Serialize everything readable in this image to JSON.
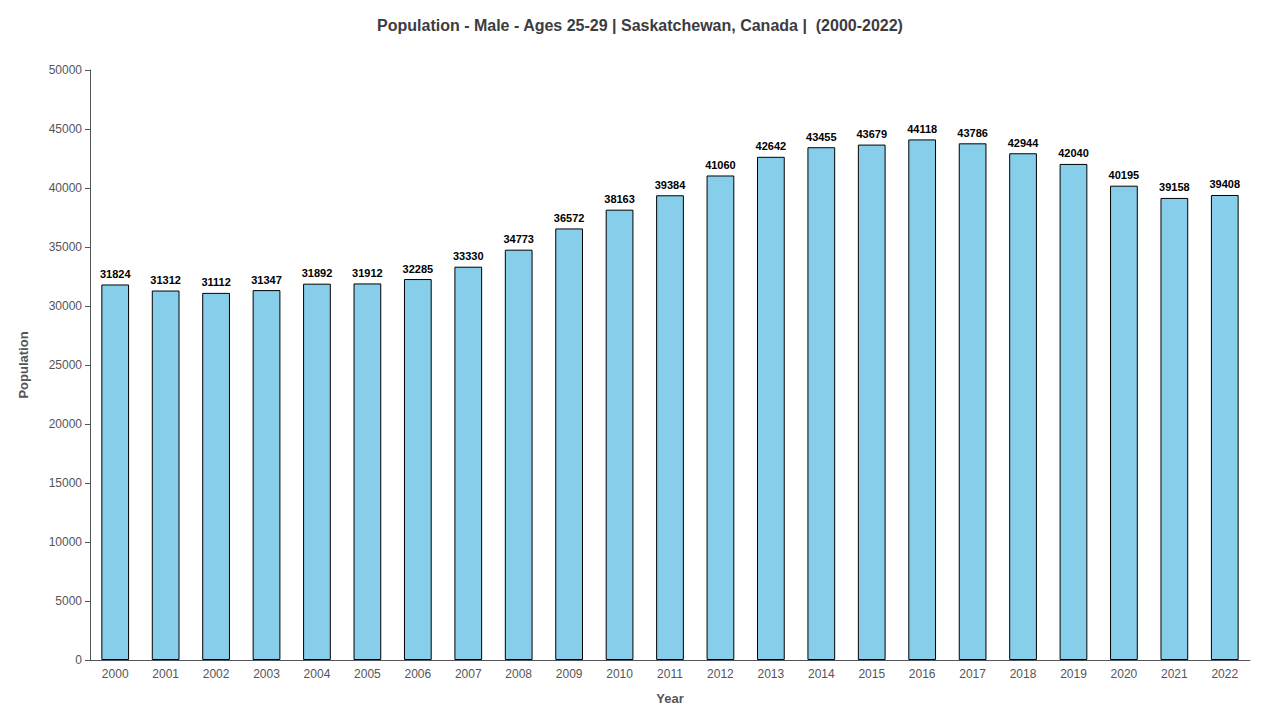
{
  "chart_data": {
    "type": "bar",
    "title": "Population - Male - Ages 25-29 | Saskatchewan, Canada |  (2000-2022)",
    "x_label": "Year",
    "y_label": "Population",
    "categories": [
      "2000",
      "2001",
      "2002",
      "2003",
      "2004",
      "2005",
      "2006",
      "2007",
      "2008",
      "2009",
      "2010",
      "2011",
      "2012",
      "2013",
      "2014",
      "2015",
      "2016",
      "2017",
      "2018",
      "2019",
      "2020",
      "2021",
      "2022"
    ],
    "values": [
      31824,
      31312,
      31112,
      31347,
      31892,
      31912,
      32285,
      33330,
      34773,
      36572,
      38163,
      39384,
      41060,
      42642,
      43455,
      43679,
      44118,
      43786,
      42944,
      42040,
      40195,
      39158,
      39408
    ],
    "color": "#87CEEB",
    "ylim": [
      0,
      50000
    ],
    "yticks": [
      0,
      5000,
      10000,
      15000,
      20000,
      25000,
      30000,
      35000,
      40000,
      45000,
      50000
    ],
    "grid": false,
    "data_labels": true
  }
}
